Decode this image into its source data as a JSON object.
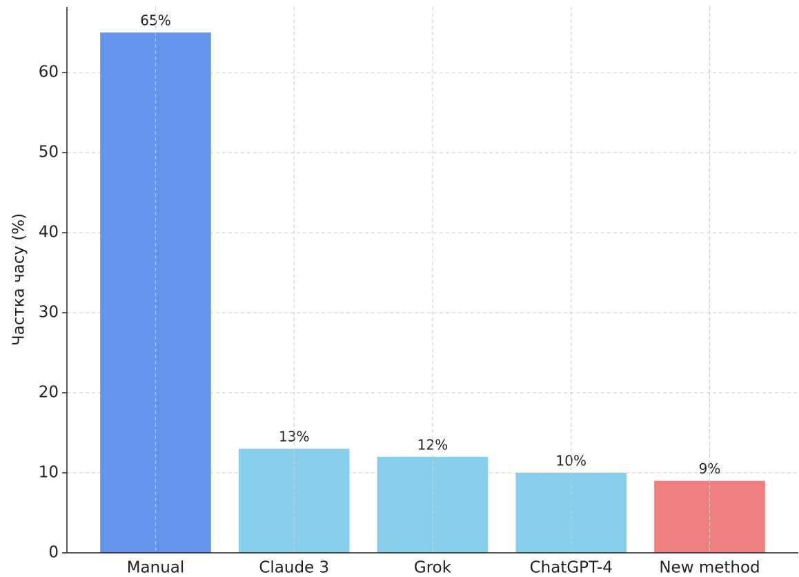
{
  "chart_data": {
    "type": "bar",
    "y_label": "Частка часу (%)",
    "categories": [
      "Manual",
      "Claude 3",
      "Grok",
      "ChatGPT-4",
      "New method"
    ],
    "values": [
      65,
      13,
      12,
      10,
      9
    ],
    "value_labels": [
      "65%",
      "13%",
      "12%",
      "10%",
      "9%"
    ],
    "colors": [
      "#6495ed",
      "#87ceeb",
      "#87ceeb",
      "#87ceeb",
      "#f08080"
    ],
    "ylim": [
      0,
      68.2
    ],
    "yticks": [
      0,
      10,
      20,
      30,
      40,
      50,
      60
    ],
    "grid": true
  }
}
